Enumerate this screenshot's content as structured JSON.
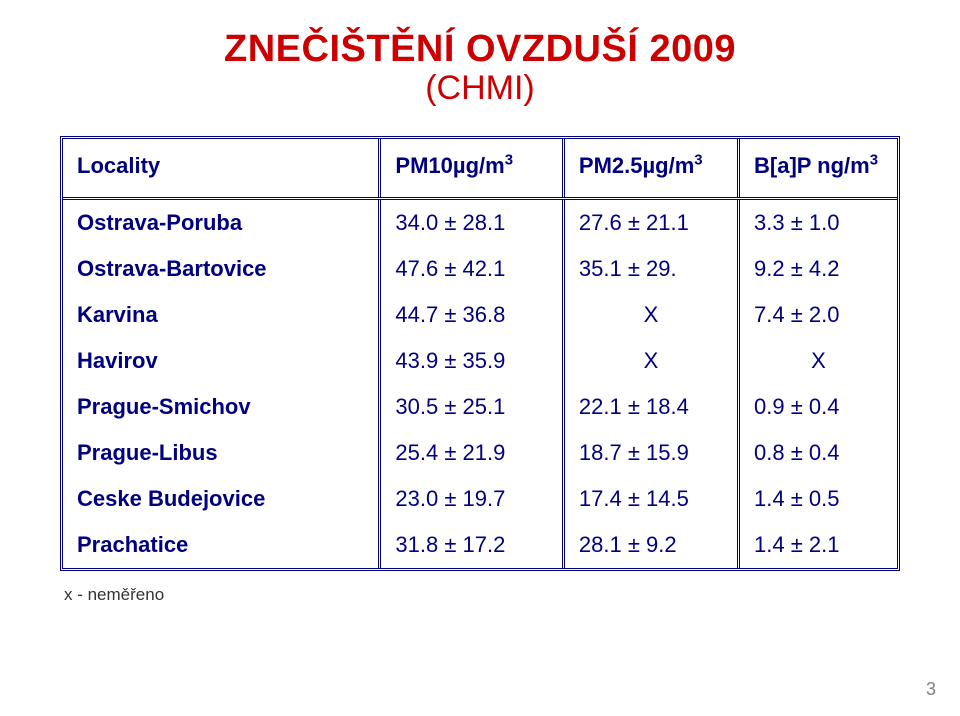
{
  "title": {
    "line1": "ZNEČIŠTĚNÍ OVZDUŠÍ  2009",
    "line2": "(CHMI)"
  },
  "table": {
    "columns": [
      {
        "label": "Locality",
        "unit": ""
      },
      {
        "label": "PM10",
        "unit": "µg/m",
        "sup": "3"
      },
      {
        "label": "PM2.5",
        "unit": "µg/m",
        "sup": "3"
      },
      {
        "label": "B[a]P ng/m",
        "unit": "",
        "sup": "3"
      }
    ],
    "rows": [
      {
        "locality": "Ostrava-Poruba",
        "pm10": "34.0 ± 28.1",
        "pm25": "27.6 ± 21.1",
        "bap": "3.3 ± 1.0"
      },
      {
        "locality": "Ostrava-Bartovice",
        "pm10": "47.6 ± 42.1",
        "pm25": "35.1 ± 29.",
        "bap": "9.2 ± 4.2"
      },
      {
        "locality": "Karvina",
        "pm10": "44.7 ± 36.8",
        "pm25": "X",
        "bap": "7.4 ± 2.0"
      },
      {
        "locality": "Havirov",
        "pm10": "43.9 ± 35.9",
        "pm25": "X",
        "bap": "X"
      },
      {
        "locality": "Prague-Smichov",
        "pm10": "30.5 ± 25.1",
        "pm25": "22.1 ± 18.4",
        "bap": "0.9  ±  0.4"
      },
      {
        "locality": "Prague-Libus",
        "pm10": "25.4 ± 21.9",
        "pm25": "18.7 ± 15.9",
        "bap": "0.8 ±  0.4"
      },
      {
        "locality": "Ceske Budejovice",
        "pm10": "23.0 ± 19.7",
        "pm25": "17.4 ± 14.5",
        "bap": "1.4  ±  0.5"
      },
      {
        "locality": "Prachatice",
        "pm10": "31.8 ± 17.2",
        "pm25": "28.1 ± 9.2",
        "bap": "1.4  ± 2.1"
      }
    ],
    "column_widths_pct": [
      38,
      22,
      21,
      19
    ],
    "colors": {
      "text": "#000080",
      "border": "#000080",
      "title": "#cc0000",
      "background": "#ffffff",
      "pagenum": "#808080"
    },
    "fonts": {
      "title_size_pt": 38,
      "subtitle_size_pt": 34,
      "header_size_pt": 22,
      "cell_size_pt": 22,
      "footnote_size_pt": 17
    }
  },
  "footnote": "x  - neměřeno",
  "page_number": "3"
}
